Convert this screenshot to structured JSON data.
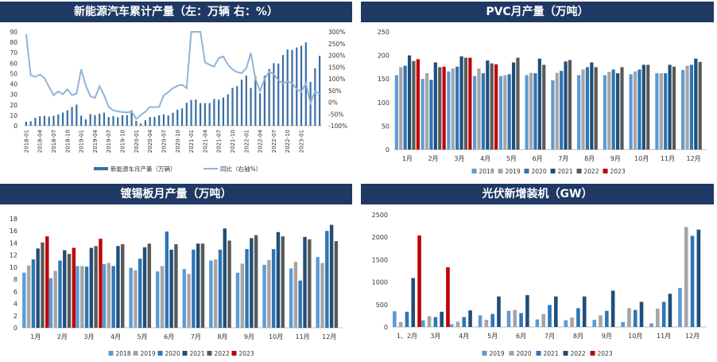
{
  "chart_data": [
    {
      "type": "bar",
      "title": "新能源汽车累计产量（左：万辆  右：%）",
      "x_tick_labels": [
        "2018-01",
        "2018-04",
        "2018-07",
        "2018-10",
        "2019-01",
        "2019-04",
        "2019-07",
        "2019-10",
        "2020-01",
        "2020-04",
        "2020-07",
        "2020-10",
        "2021-01",
        "2021-04",
        "2021-07",
        "2021-10",
        "2022-01",
        "2022-04",
        "2022-07",
        "2022-10",
        "2023-01"
      ],
      "y_ticks_left": [
        "0",
        "10",
        "20",
        "30",
        "40",
        "50",
        "60",
        "70",
        "80",
        "90"
      ],
      "y_ticks_right": [
        "-100%",
        "-50%",
        "0%",
        "50%",
        "100%",
        "150%",
        "200%",
        "250%",
        "300%"
      ],
      "ylim_left": [
        0,
        90
      ],
      "ylim_right": [
        -100,
        300
      ],
      "series": [
        {
          "name": "新能源车月产量（万辆）",
          "kind": "bar",
          "axis": "left",
          "color": "#3a6ea5",
          "values": [
            3.9,
            4.3,
            7.5,
            9.1,
            9.5,
            8.7,
            9.6,
            10.9,
            12.6,
            14.7,
            17.9,
            20.2,
            9.5,
            6.1,
            11.1,
            10.1,
            11.4,
            12.5,
            8.3,
            9.3,
            8.1,
            10,
            10.1,
            14.8,
            4.5,
            2.1,
            5.2,
            8.2,
            8.4,
            10,
            10.8,
            9.8,
            12.4,
            15.4,
            16.6,
            22,
            24.7,
            25,
            21.7,
            21.7,
            21.7,
            25.6,
            24.9,
            27,
            30.1,
            36.3,
            38,
            44.2,
            47.9,
            36.1,
            47.7,
            31,
            47.9,
            54.4,
            60,
            59.6,
            67.8,
            73,
            72.7,
            75,
            76.6,
            79.9,
            42,
            55,
            67
          ]
        },
        {
          "name": "同比（右轴%）",
          "kind": "line",
          "axis": "right",
          "color": "#8fb4d9",
          "values": [
            290,
            115,
            108,
            118,
            103,
            65,
            30,
            46,
            34,
            55,
            30,
            37,
            140,
            71,
            26,
            18,
            68,
            29,
            -19,
            -35,
            -39,
            -42,
            -43,
            -40,
            -71,
            -55,
            -40,
            -20,
            -21,
            -20,
            30,
            43,
            60,
            70,
            75,
            60,
            310,
            310,
            304,
            170,
            160,
            152,
            188,
            195,
            160,
            140,
            128,
            124,
            144,
            210,
            100,
            48,
            100,
            130,
            120,
            94,
            80,
            88,
            82,
            55,
            45,
            80,
            -4,
            46,
            37
          ]
        }
      ]
    },
    {
      "type": "bar",
      "title": "PVC月产量（万吨）",
      "categories": [
        "1月",
        "2月",
        "3月",
        "4月",
        "5月",
        "6月",
        "7月",
        "8月",
        "9月",
        "10月",
        "11月",
        "12月"
      ],
      "y_ticks": [
        "0",
        "50",
        "100",
        "150",
        "200",
        "250"
      ],
      "ylim": [
        0,
        250
      ],
      "series": [
        {
          "name": "2018",
          "color": "#5b9bd5",
          "values": [
            158,
            150,
            166,
            156,
            156,
            158,
            147,
            158,
            158,
            160,
            162,
            169
          ]
        },
        {
          "name": "2019",
          "color": "#a5a5a5",
          "values": [
            175,
            162,
            172,
            172,
            158,
            163,
            163,
            170,
            165,
            166,
            162,
            178
          ]
        },
        {
          "name": "2020",
          "color": "#2e75b6",
          "values": [
            178,
            148,
            176,
            162,
            160,
            162,
            167,
            175,
            170,
            170,
            162,
            180
          ]
        },
        {
          "name": "2021",
          "color": "#1f4e79",
          "values": [
            200,
            185,
            198,
            189,
            185,
            193,
            187,
            185,
            162,
            180,
            180,
            193
          ]
        },
        {
          "name": "2022",
          "color": "#595959",
          "values": [
            188,
            175,
            195,
            183,
            195,
            180,
            190,
            175,
            175,
            180,
            176,
            186
          ]
        },
        {
          "name": "2023",
          "color": "#c00000",
          "values": [
            192,
            176,
            195,
            181,
            null,
            null,
            null,
            null,
            null,
            null,
            null,
            null
          ]
        }
      ],
      "legend": [
        "2018",
        "2019",
        "2020",
        "2021",
        "2022",
        "2023"
      ]
    },
    {
      "type": "bar",
      "title": "镀锡板月产量（万吨）",
      "categories": [
        "1月",
        "2月",
        "3月",
        "4月",
        "5月",
        "6月",
        "7月",
        "8月",
        "9月",
        "10月",
        "11月",
        "12月"
      ],
      "y_ticks": [
        "0",
        "2",
        "4",
        "6",
        "8",
        "10",
        "12",
        "14",
        "16",
        "18"
      ],
      "ylim": [
        0,
        18
      ],
      "series": [
        {
          "name": "2018",
          "color": "#5b9bd5",
          "values": [
            9.1,
            8.2,
            10.2,
            10.5,
            9.9,
            9.3,
            9.7,
            11.1,
            9.1,
            10.4,
            9.8,
            11.7
          ]
        },
        {
          "name": "2019",
          "color": "#a5a5a5",
          "values": [
            10.3,
            9.4,
            10.2,
            10.7,
            9.5,
            10.2,
            8.9,
            11.3,
            10.6,
            11.2,
            10.9,
            10.7
          ]
        },
        {
          "name": "2020",
          "color": "#2e75b6",
          "values": [
            11.3,
            11.1,
            10.1,
            10.2,
            11.4,
            15.9,
            12.9,
            12.9,
            13.0,
            13.0,
            7.8,
            16.0
          ]
        },
        {
          "name": "2021",
          "color": "#1f4e79",
          "values": [
            13.1,
            12.8,
            13.2,
            13.5,
            13.3,
            12.9,
            13.9,
            16.4,
            14.8,
            15.8,
            15.0,
            17.0
          ]
        },
        {
          "name": "2022",
          "color": "#595959",
          "values": [
            14.1,
            12.2,
            13.5,
            13.8,
            13.9,
            13.8,
            13.9,
            14.4,
            15.3,
            15.1,
            14.6,
            14.3
          ]
        },
        {
          "name": "2023",
          "color": "#c00000",
          "values": [
            15.1,
            13.2,
            14.7,
            null,
            null,
            null,
            null,
            null,
            null,
            null,
            null,
            null
          ]
        }
      ],
      "legend": [
        "2018",
        "2019",
        "2020",
        "2021",
        "2022",
        "2023"
      ]
    },
    {
      "type": "bar",
      "title": "光伏新增装机（GW）",
      "categories": [
        "1、2月",
        "3月",
        "4月",
        "5月",
        "6月",
        "7月",
        "8月",
        "9月",
        "10月",
        "11月",
        "12月"
      ],
      "y_ticks": [
        "0",
        "500",
        "1000",
        "1500",
        "2000",
        "2500"
      ],
      "ylim": [
        0,
        2500
      ],
      "series": [
        {
          "name": "2019",
          "color": "#5b9bd5",
          "values": [
            350,
            150,
            60,
            260,
            360,
            170,
            150,
            160,
            110,
            80,
            870
          ]
        },
        {
          "name": "2020",
          "color": "#a5a5a5",
          "values": [
            110,
            240,
            120,
            160,
            380,
            290,
            210,
            260,
            420,
            410,
            2230
          ]
        },
        {
          "name": "2021",
          "color": "#2e75b6",
          "values": [
            340,
            220,
            220,
            290,
            310,
            490,
            420,
            360,
            380,
            560,
            2030
          ]
        },
        {
          "name": "2022",
          "color": "#1f4e79",
          "values": [
            1090,
            340,
            370,
            680,
            710,
            680,
            680,
            810,
            560,
            740,
            2170
          ]
        },
        {
          "name": "2023",
          "color": "#c00000",
          "values": [
            2040,
            1330,
            null,
            null,
            null,
            null,
            null,
            null,
            null,
            null,
            null
          ]
        }
      ],
      "legend": [
        "2019",
        "2020",
        "2021",
        "2022",
        "2023"
      ]
    }
  ]
}
